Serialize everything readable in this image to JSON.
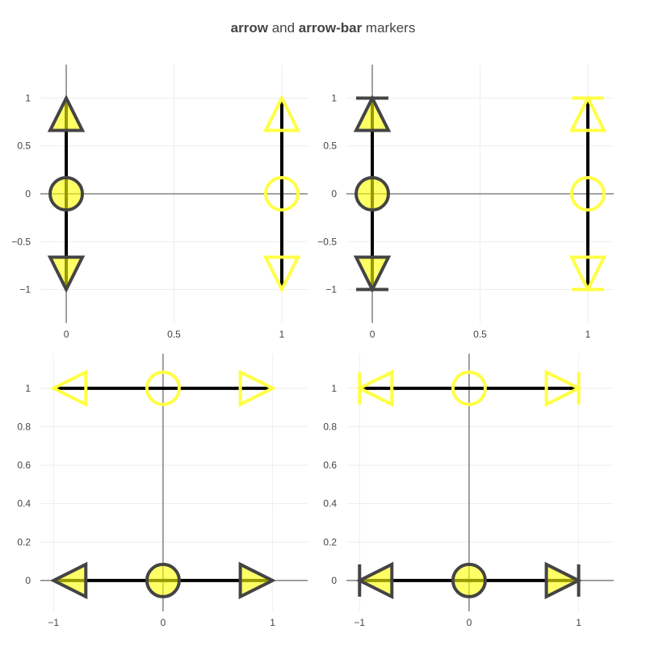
{
  "title": {
    "parts": [
      {
        "text": "arrow",
        "bold": true
      },
      {
        "text": " and ",
        "bold": false
      },
      {
        "text": "arrow-bar",
        "bold": true
      },
      {
        "text": " markers",
        "bold": false
      }
    ]
  },
  "colors": {
    "fill": "#ffff00",
    "fill_opacity": 0.6,
    "dark_outline": "#444444",
    "light_outline": "#ffff44",
    "line": "#000000",
    "grid": "#eeeeee",
    "zeroline": "#444444",
    "tick_text": "#444444"
  },
  "chart_data": [
    {
      "type": "scatter",
      "name": "top-left",
      "marker_family": "arrow",
      "xlim": [
        -0.12,
        1.12
      ],
      "ylim": [
        -1.35,
        1.35
      ],
      "xticks": [
        {
          "v": 0,
          "label": "0"
        },
        {
          "v": 0.5,
          "label": "0.5"
        },
        {
          "v": 1,
          "label": "1"
        }
      ],
      "yticks": [
        {
          "v": -1,
          "label": "−1"
        },
        {
          "v": -0.5,
          "label": "−0.5"
        },
        {
          "v": 0,
          "label": "0"
        },
        {
          "v": 0.5,
          "label": "0.5"
        },
        {
          "v": 1,
          "label": "1"
        }
      ],
      "series": [
        {
          "name": "filled",
          "style": "filled",
          "x": [
            0,
            0,
            0
          ],
          "y": [
            -1,
            0,
            1
          ],
          "markers": [
            "arrow-down",
            "circle",
            "arrow-up"
          ]
        },
        {
          "name": "open",
          "style": "open",
          "x": [
            1,
            1,
            1
          ],
          "y": [
            -1,
            0,
            1
          ],
          "markers": [
            "arrow-down",
            "circle",
            "arrow-up"
          ]
        }
      ]
    },
    {
      "type": "scatter",
      "name": "top-right",
      "marker_family": "arrow-bar",
      "xlim": [
        -0.12,
        1.12
      ],
      "ylim": [
        -1.35,
        1.35
      ],
      "xticks": [
        {
          "v": 0,
          "label": "0"
        },
        {
          "v": 0.5,
          "label": "0.5"
        },
        {
          "v": 1,
          "label": "1"
        }
      ],
      "yticks": [
        {
          "v": -1,
          "label": "−1"
        },
        {
          "v": -0.5,
          "label": "−0.5"
        },
        {
          "v": 0,
          "label": "0"
        },
        {
          "v": 0.5,
          "label": "0.5"
        },
        {
          "v": 1,
          "label": "1"
        }
      ],
      "series": [
        {
          "name": "filled",
          "style": "filled",
          "x": [
            0,
            0,
            0
          ],
          "y": [
            -1,
            0,
            1
          ],
          "markers": [
            "arrow-bar-down",
            "circle",
            "arrow-bar-up"
          ]
        },
        {
          "name": "open",
          "style": "open",
          "x": [
            1,
            1,
            1
          ],
          "y": [
            -1,
            0,
            1
          ],
          "markers": [
            "arrow-bar-down",
            "circle",
            "arrow-bar-up"
          ]
        }
      ]
    },
    {
      "type": "scatter",
      "name": "bottom-left",
      "marker_family": "arrow",
      "xlim": [
        -1.12,
        1.32
      ],
      "ylim": [
        -0.16,
        1.18
      ],
      "xticks": [
        {
          "v": -1,
          "label": "−1"
        },
        {
          "v": 0,
          "label": "0"
        },
        {
          "v": 1,
          "label": "1"
        }
      ],
      "yticks": [
        {
          "v": 0,
          "label": "0"
        },
        {
          "v": 0.2,
          "label": "0.2"
        },
        {
          "v": 0.4,
          "label": "0.4"
        },
        {
          "v": 0.6,
          "label": "0.6"
        },
        {
          "v": 0.8,
          "label": "0.8"
        },
        {
          "v": 1,
          "label": "1"
        }
      ],
      "series": [
        {
          "name": "filled",
          "style": "filled",
          "x": [
            -1,
            0,
            1
          ],
          "y": [
            0,
            0,
            0
          ],
          "markers": [
            "arrow-left",
            "circle",
            "arrow-right"
          ]
        },
        {
          "name": "open",
          "style": "open",
          "x": [
            -1,
            0,
            1
          ],
          "y": [
            1,
            1,
            1
          ],
          "markers": [
            "arrow-left",
            "circle",
            "arrow-right"
          ]
        }
      ]
    },
    {
      "type": "scatter",
      "name": "bottom-right",
      "marker_family": "arrow-bar",
      "xlim": [
        -1.12,
        1.32
      ],
      "ylim": [
        -0.16,
        1.18
      ],
      "xticks": [
        {
          "v": -1,
          "label": "−1"
        },
        {
          "v": 0,
          "label": "0"
        },
        {
          "v": 1,
          "label": "1"
        }
      ],
      "yticks": [
        {
          "v": 0,
          "label": "0"
        },
        {
          "v": 0.2,
          "label": "0.2"
        },
        {
          "v": 0.4,
          "label": "0.4"
        },
        {
          "v": 0.6,
          "label": "0.6"
        },
        {
          "v": 0.8,
          "label": "0.8"
        },
        {
          "v": 1,
          "label": "1"
        }
      ],
      "series": [
        {
          "name": "filled",
          "style": "filled",
          "x": [
            -1,
            0,
            1
          ],
          "y": [
            0,
            0,
            0
          ],
          "markers": [
            "arrow-bar-left",
            "circle",
            "arrow-bar-right"
          ]
        },
        {
          "name": "open",
          "style": "open",
          "x": [
            -1,
            0,
            1
          ],
          "y": [
            1,
            1,
            1
          ],
          "markers": [
            "arrow-bar-left",
            "circle",
            "arrow-bar-right"
          ]
        }
      ]
    }
  ]
}
